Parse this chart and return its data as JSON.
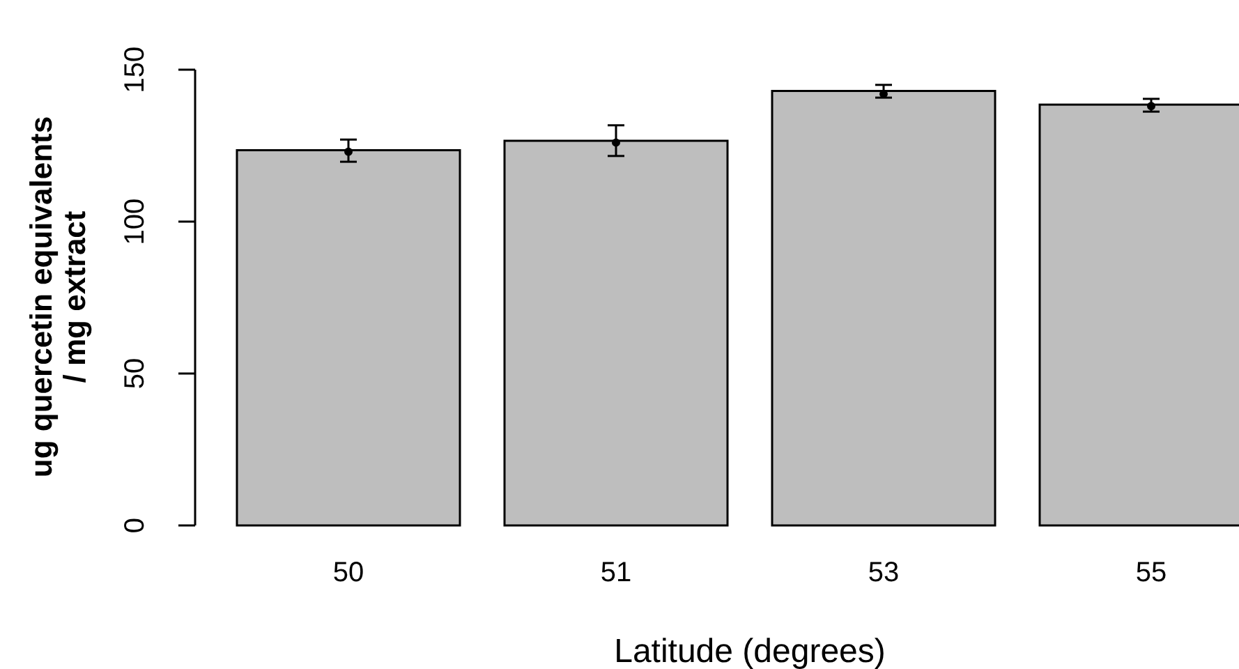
{
  "chart_data": {
    "type": "bar",
    "xlabel": "Latitude (degrees)",
    "ylabel": "ug quercetin equivalents\n/ mg extract",
    "categories": [
      "50",
      "51",
      "53",
      "55"
    ],
    "series": [
      {
        "color": "#bebebe",
        "values": [
          123.5,
          126.6,
          143,
          138.5
        ]
      },
      {
        "type": "scatter",
        "color": "#000000",
        "x": [
          "50",
          "51",
          "53",
          "55"
        ],
        "values": [
          123,
          126,
          142,
          138
        ],
        "errors": [
          [
            119.7,
            127
          ],
          [
            121.6,
            131.7
          ],
          [
            140.8,
            145
          ],
          [
            136.2,
            140.4
          ]
        ]
      }
    ],
    "ylim": [
      0,
      150
    ],
    "yticks": [
      0,
      50,
      100,
      150
    ],
    "grid": false,
    "marker": "circle"
  }
}
